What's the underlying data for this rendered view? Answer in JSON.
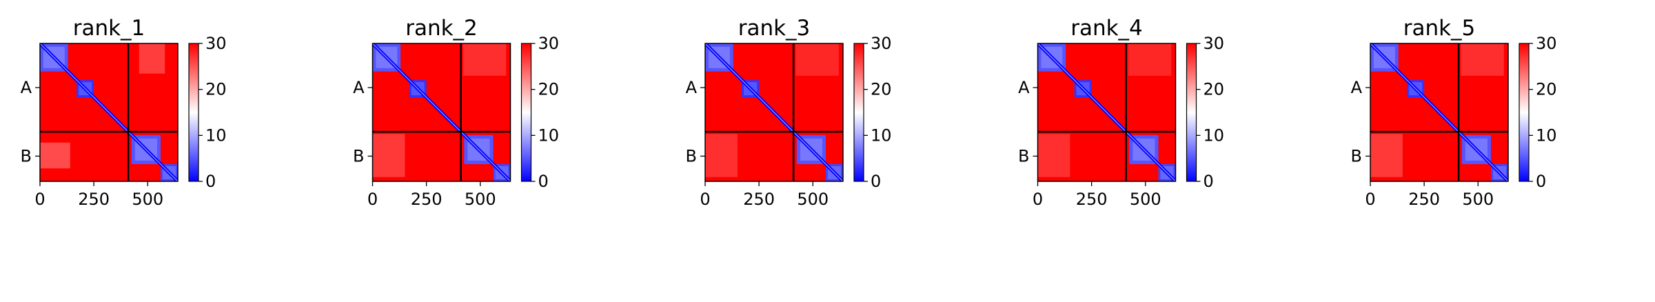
{
  "chart_data": [
    {
      "type": "heatmap",
      "title": "rank_1",
      "x_ticks": [
        "0",
        "250",
        "500"
      ],
      "x_tick_values": [
        0,
        250,
        500
      ],
      "y_tick_labels": [
        "A",
        "B"
      ],
      "y_tick_values": [
        205,
        523
      ],
      "chain_lengths": [
        410,
        230
      ],
      "total_length": 640,
      "colorbar": {
        "ticks": [
          "0",
          "10",
          "20",
          "30"
        ],
        "range": [
          0,
          30
        ],
        "colormap": "bwr"
      },
      "blue_domains": [
        {
          "start": 0,
          "end": 130,
          "value": 5
        },
        {
          "start": 170,
          "end": 250,
          "value": 3
        },
        {
          "start": 425,
          "end": 560,
          "value": 5
        },
        {
          "start": 560,
          "end": 640,
          "value": 4
        }
      ],
      "background_value": 30,
      "faint_interchain": [
        {
          "rows": [
            460,
            580
          ],
          "cols": [
            0,
            140
          ],
          "value": 22
        }
      ]
    },
    {
      "type": "heatmap",
      "title": "rank_2",
      "x_ticks": [
        "0",
        "250",
        "500"
      ],
      "x_tick_values": [
        0,
        250,
        500
      ],
      "y_tick_labels": [
        "A",
        "B"
      ],
      "y_tick_values": [
        205,
        523
      ],
      "chain_lengths": [
        410,
        230
      ],
      "total_length": 640,
      "colorbar": {
        "ticks": [
          "0",
          "10",
          "20",
          "30"
        ],
        "range": [
          0,
          30
        ],
        "colormap": "bwr"
      },
      "blue_domains": [
        {
          "start": 0,
          "end": 130,
          "value": 5
        },
        {
          "start": 170,
          "end": 250,
          "value": 3
        },
        {
          "start": 425,
          "end": 560,
          "value": 5
        },
        {
          "start": 560,
          "end": 640,
          "value": 4
        }
      ],
      "background_value": 30,
      "faint_interchain": [
        {
          "rows": [
            420,
            620
          ],
          "cols": [
            0,
            150
          ],
          "value": 24
        }
      ]
    },
    {
      "type": "heatmap",
      "title": "rank_3",
      "x_ticks": [
        "0",
        "250",
        "500"
      ],
      "x_tick_values": [
        0,
        250,
        500
      ],
      "y_tick_labels": [
        "A",
        "B"
      ],
      "y_tick_values": [
        205,
        523
      ],
      "chain_lengths": [
        410,
        230
      ],
      "total_length": 640,
      "colorbar": {
        "ticks": [
          "0",
          "10",
          "20",
          "30"
        ],
        "range": [
          0,
          30
        ],
        "colormap": "bwr"
      },
      "blue_domains": [
        {
          "start": 0,
          "end": 130,
          "value": 5
        },
        {
          "start": 170,
          "end": 250,
          "value": 3
        },
        {
          "start": 425,
          "end": 560,
          "value": 5
        },
        {
          "start": 560,
          "end": 640,
          "value": 4
        }
      ],
      "background_value": 30,
      "faint_interchain": [
        {
          "rows": [
            420,
            620
          ],
          "cols": [
            0,
            150
          ],
          "value": 25
        }
      ]
    },
    {
      "type": "heatmap",
      "title": "rank_4",
      "x_ticks": [
        "0",
        "250",
        "500"
      ],
      "x_tick_values": [
        0,
        250,
        500
      ],
      "y_tick_labels": [
        "A",
        "B"
      ],
      "y_tick_values": [
        205,
        523
      ],
      "chain_lengths": [
        410,
        230
      ],
      "total_length": 640,
      "colorbar": {
        "ticks": [
          "0",
          "10",
          "20",
          "30"
        ],
        "range": [
          0,
          30
        ],
        "colormap": "bwr"
      },
      "blue_domains": [
        {
          "start": 0,
          "end": 130,
          "value": 5
        },
        {
          "start": 170,
          "end": 250,
          "value": 3
        },
        {
          "start": 425,
          "end": 560,
          "value": 5
        },
        {
          "start": 560,
          "end": 640,
          "value": 4
        }
      ],
      "background_value": 30,
      "faint_interchain": [
        {
          "rows": [
            420,
            620
          ],
          "cols": [
            0,
            150
          ],
          "value": 25
        }
      ]
    },
    {
      "type": "heatmap",
      "title": "rank_5",
      "x_ticks": [
        "0",
        "250",
        "500"
      ],
      "x_tick_values": [
        0,
        250,
        500
      ],
      "y_tick_labels": [
        "A",
        "B"
      ],
      "y_tick_values": [
        205,
        523
      ],
      "chain_lengths": [
        410,
        230
      ],
      "total_length": 640,
      "colorbar": {
        "ticks": [
          "0",
          "10",
          "20",
          "30"
        ],
        "range": [
          0,
          30
        ],
        "colormap": "bwr"
      },
      "blue_domains": [
        {
          "start": 0,
          "end": 130,
          "value": 5
        },
        {
          "start": 170,
          "end": 250,
          "value": 3
        },
        {
          "start": 425,
          "end": 560,
          "value": 5
        },
        {
          "start": 560,
          "end": 640,
          "value": 4
        }
      ],
      "background_value": 30,
      "faint_interchain": [
        {
          "rows": [
            420,
            620
          ],
          "cols": [
            0,
            150
          ],
          "value": 24
        }
      ]
    }
  ]
}
